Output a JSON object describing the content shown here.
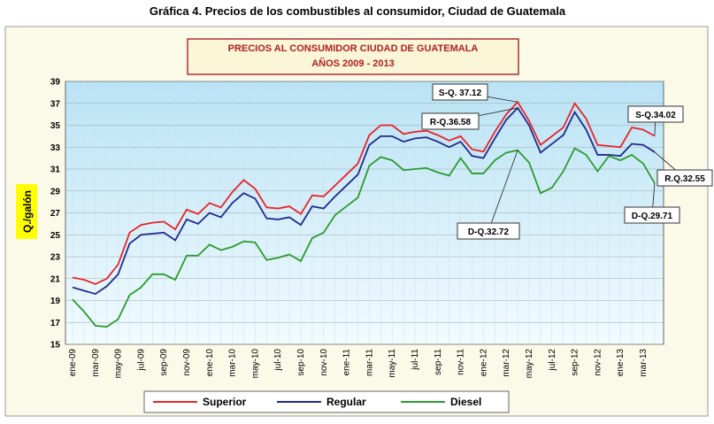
{
  "chart_data": {
    "type": "line",
    "title": "Gráfica 4.  Precios de los combustibles al consumidor, Ciudad de Guatemala",
    "subtitle": [
      "PRECIOS AL CONSUMIDOR CIUDAD DE GUATEMALA",
      "AÑOS 2009 - 2013"
    ],
    "y_label": "Q./galón",
    "categories": [
      "ene-09",
      null,
      "mar-09",
      null,
      "may-09",
      null,
      "jul-09",
      null,
      "sep-09",
      null,
      "nov-09",
      null,
      "ene-10",
      null,
      "mar-10",
      null,
      "may-10",
      null,
      "jul-10",
      null,
      "sep-10",
      null,
      "nov-10",
      null,
      "ene-11",
      null,
      "mar-11",
      null,
      "may-11",
      null,
      "jul-11",
      null,
      "sep-11",
      null,
      "nov-11",
      null,
      "ene-12",
      null,
      "mar-12",
      null,
      "may-12",
      null,
      "jul-12",
      null,
      "sep-12",
      null,
      "nov-12",
      null,
      "ene-13",
      null,
      "mar-13",
      null
    ],
    "series": [
      {
        "name": "Superior",
        "color": "#e8232a",
        "values": [
          21.1,
          20.9,
          20.5,
          21.0,
          22.3,
          25.2,
          25.9,
          26.1,
          26.2,
          25.5,
          27.3,
          26.9,
          27.9,
          27.5,
          28.9,
          30.0,
          29.2,
          27.5,
          27.4,
          27.6,
          26.9,
          28.6,
          28.5,
          29.5,
          30.5,
          31.5,
          34.1,
          35.0,
          35.0,
          34.2,
          34.4,
          34.5,
          34.1,
          33.6,
          34.0,
          32.8,
          32.6,
          34.4,
          36.0,
          37.12,
          35.4,
          33.2,
          34.0,
          34.8,
          37.0,
          35.6,
          33.2,
          33.1,
          33.0,
          34.8,
          34.6,
          34.02
        ]
      },
      {
        "name": "Regular",
        "color": "#1f2a8c",
        "values": [
          20.2,
          19.9,
          19.6,
          20.3,
          21.4,
          24.2,
          25.0,
          25.1,
          25.2,
          24.5,
          26.4,
          26.0,
          27.0,
          26.6,
          27.9,
          28.8,
          28.3,
          26.5,
          26.4,
          26.6,
          25.9,
          27.6,
          27.4,
          28.5,
          29.5,
          30.5,
          33.2,
          34.0,
          34.0,
          33.5,
          33.8,
          33.9,
          33.5,
          33.0,
          33.5,
          32.2,
          32.0,
          33.8,
          35.5,
          36.58,
          35.0,
          32.5,
          33.3,
          34.1,
          36.2,
          34.6,
          32.3,
          32.3,
          32.2,
          33.3,
          33.2,
          32.55
        ]
      },
      {
        "name": "Diesel",
        "color": "#2e9a2e",
        "values": [
          19.1,
          18.0,
          16.7,
          16.6,
          17.3,
          19.5,
          20.2,
          21.4,
          21.4,
          20.9,
          23.1,
          23.1,
          24.1,
          23.6,
          23.9,
          24.4,
          24.3,
          22.7,
          22.9,
          23.2,
          22.6,
          24.7,
          25.2,
          26.8,
          27.6,
          28.4,
          31.3,
          32.1,
          31.8,
          30.9,
          31.0,
          31.1,
          30.7,
          30.4,
          32.0,
          30.6,
          30.6,
          31.8,
          32.5,
          32.72,
          31.6,
          28.8,
          29.3,
          30.8,
          32.9,
          32.3,
          30.8,
          32.2,
          31.8,
          32.3,
          31.5,
          29.71
        ]
      }
    ],
    "annotations": [
      "S-Q. 37.12",
      "R-Q.36.58",
      "S-Q.34.02",
      "R.Q.32.55",
      "D-Q.29.71",
      "D-Q.32.72"
    ],
    "ylim": [
      15,
      39
    ],
    "yticks": [
      15,
      17,
      19,
      21,
      23,
      25,
      27,
      29,
      31,
      33,
      35,
      37,
      39
    ],
    "grid": true,
    "legend": "bottom"
  }
}
